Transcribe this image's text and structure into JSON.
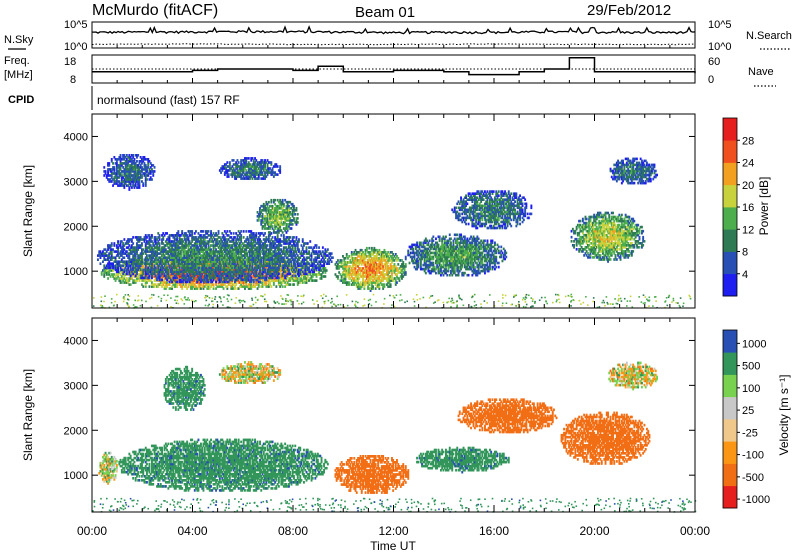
{
  "header": {
    "station": "McMurdo (fitACF)",
    "beam": "Beam 01",
    "date": "29/Feb/2012"
  },
  "noise_panel": {
    "left_label": "N.Sky",
    "right_label": "N.Search",
    "ticks_left": [
      "10^5",
      "10^0"
    ],
    "ticks_right": [
      "10^5",
      "10^0"
    ]
  },
  "freq_panel": {
    "left_label_line1": "Freq.",
    "left_label_line2": "[MHz]",
    "right_label": "Nave",
    "ticks_left": [
      "18",
      "8"
    ],
    "ticks_right": [
      "60",
      "0"
    ]
  },
  "cpid": {
    "label": "CPID",
    "program": "normalsound (fast) 157 RF"
  },
  "axes": {
    "ylabel": "Slant Range [km]",
    "xlabel": "Time UT",
    "yticks": [
      "1000",
      "2000",
      "3000",
      "4000"
    ],
    "xticks": [
      "00:00",
      "04:00",
      "08:00",
      "12:00",
      "16:00",
      "20:00",
      "00:00"
    ]
  },
  "colors": {
    "power": [
      "#1e1ef0",
      "#2850b4",
      "#2e7a55",
      "#4cae4c",
      "#c8d23c",
      "#f2a020",
      "#f0501e",
      "#e61e1e"
    ],
    "velocity": [
      "#e61e1e",
      "#f26e14",
      "#fa9614",
      "#f0c88c",
      "#c8c8c8",
      "#78d250",
      "#32965a",
      "#2850b4"
    ]
  },
  "power_scale": {
    "label": "Power [dB]",
    "ticks": [
      "4",
      "8",
      "12",
      "16",
      "20",
      "24",
      "28"
    ]
  },
  "velocity_scale": {
    "label": "Velocity [m s⁻¹]",
    "ticks": [
      "1000",
      "500",
      "100",
      "25",
      "-25",
      "-100",
      "-500",
      "-1000"
    ]
  },
  "chart_data": [
    {
      "type": "line",
      "panel": "noise",
      "yscale": "log",
      "ylim": [
        1,
        100000
      ],
      "xlim": [
        "00:00",
        "24:00"
      ],
      "series": [
        {
          "name": "N.Sky",
          "style": "solid",
          "x": [
            0,
            2,
            4,
            6,
            8,
            10,
            12,
            14,
            16,
            18,
            20,
            22,
            24
          ],
          "y": [
            1000,
            1200,
            1300,
            1500,
            1400,
            1200,
            900,
            1100,
            1000,
            1300,
            1100,
            1000,
            1000
          ]
        },
        {
          "name": "N.Search",
          "style": "dotted",
          "x": [
            0,
            4,
            8,
            12,
            16,
            20,
            24
          ],
          "y": [
            5,
            6,
            5,
            5,
            6,
            5,
            5
          ]
        }
      ]
    },
    {
      "type": "line",
      "panel": "frequency",
      "ylim_freq": [
        8,
        18
      ],
      "ylim_nave": [
        0,
        60
      ],
      "series": [
        {
          "name": "Freq.",
          "style": "solid",
          "x": [
            0,
            2,
            4,
            5,
            6,
            8,
            9,
            10,
            12,
            14,
            15,
            17,
            18,
            19,
            20,
            22,
            24
          ],
          "y": [
            12,
            12,
            12.5,
            13,
            13,
            12.5,
            14,
            12,
            12.5,
            12,
            11,
            12,
            13,
            17,
            12,
            12,
            11.5
          ]
        },
        {
          "name": "Nave",
          "style": "dotted",
          "x": [
            0,
            6,
            12,
            18,
            24
          ],
          "y": [
            30,
            30,
            30,
            30,
            30
          ]
        }
      ]
    },
    {
      "type": "heatmap",
      "panel": "power",
      "variable": "Power",
      "unit": "dB",
      "zlim": [
        0,
        30
      ],
      "ylim": [
        180,
        4500
      ],
      "xlim": [
        "00:00",
        "24:00"
      ],
      "blobs": [
        {
          "t0": 0.3,
          "t1": 9.4,
          "r0": 550,
          "r1": 1350,
          "z": 26
        },
        {
          "t0": 0.1,
          "t1": 9.6,
          "r0": 700,
          "r1": 1900,
          "z": 10
        },
        {
          "t0": 9.6,
          "t1": 12.5,
          "r0": 550,
          "r1": 1500,
          "z": 22
        },
        {
          "t0": 12.4,
          "t1": 16.5,
          "r0": 850,
          "r1": 1800,
          "z": 12
        },
        {
          "t0": 14.3,
          "t1": 17.5,
          "r0": 1900,
          "r1": 2800,
          "z": 10
        },
        {
          "t0": 19.0,
          "t1": 22.0,
          "r0": 1200,
          "r1": 2300,
          "z": 17
        },
        {
          "t0": 5.0,
          "t1": 7.5,
          "r0": 3000,
          "r1": 3500,
          "z": 9
        },
        {
          "t0": 20.5,
          "t1": 22.5,
          "r0": 2900,
          "r1": 3500,
          "z": 9
        },
        {
          "t0": 0.4,
          "t1": 2.5,
          "r0": 2800,
          "r1": 3600,
          "z": 8
        },
        {
          "t0": 6.5,
          "t1": 8.2,
          "r0": 1800,
          "r1": 2600,
          "z": 15
        }
      ]
    },
    {
      "type": "heatmap",
      "panel": "velocity",
      "variable": "Velocity",
      "unit": "m s-1",
      "zlim": [
        -1000,
        1000
      ],
      "ylim": [
        180,
        4500
      ],
      "xlim": [
        "00:00",
        "24:00"
      ],
      "blobs": [
        {
          "t0": 1.0,
          "t1": 9.4,
          "r0": 600,
          "r1": 1800,
          "z": 400
        },
        {
          "t0": 9.6,
          "t1": 12.6,
          "r0": 550,
          "r1": 1450,
          "z": -300
        },
        {
          "t0": 12.8,
          "t1": 16.6,
          "r0": 1050,
          "r1": 1600,
          "z": 400
        },
        {
          "t0": 14.5,
          "t1": 18.5,
          "r0": 1900,
          "r1": 2700,
          "z": -300
        },
        {
          "t0": 18.6,
          "t1": 22.2,
          "r0": 1200,
          "r1": 2400,
          "z": -300
        },
        {
          "t0": 5.0,
          "t1": 7.5,
          "r0": 3000,
          "r1": 3500,
          "z": 0
        },
        {
          "t0": 20.5,
          "t1": 22.5,
          "r0": 2900,
          "r1": 3500,
          "z": 0
        },
        {
          "t0": 2.8,
          "t1": 4.5,
          "r0": 2400,
          "r1": 3400,
          "z": 400
        },
        {
          "t0": 0.2,
          "t1": 1.0,
          "r0": 800,
          "r1": 1500,
          "z": 30
        }
      ]
    }
  ]
}
